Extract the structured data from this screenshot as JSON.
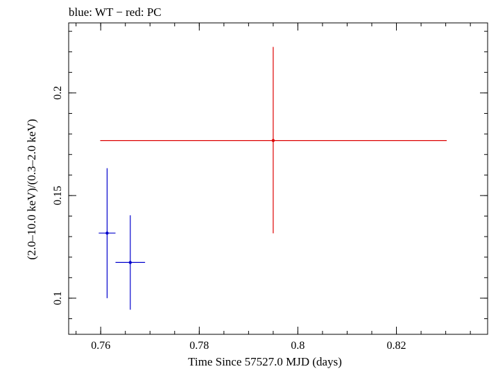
{
  "chart_data": {
    "type": "scatter",
    "title": "blue: WT − red: PC",
    "xlabel": "Time Since 57527.0 MJD (days)",
    "ylabel": "(2.0–10.0 keV)/(0.3–2.0 keV)",
    "xlim": [
      0.7535,
      0.8385
    ],
    "ylim": [
      0.0824,
      0.2341
    ],
    "x_ticks": [
      {
        "value": 0.76,
        "label": "0.76"
      },
      {
        "value": 0.78,
        "label": "0.78"
      },
      {
        "value": 0.8,
        "label": "0.8"
      },
      {
        "value": 0.82,
        "label": "0.82"
      }
    ],
    "y_ticks": [
      {
        "value": 0.1,
        "label": "0.1"
      },
      {
        "value": 0.15,
        "label": "0.15"
      },
      {
        "value": 0.2,
        "label": "0.2"
      }
    ],
    "x_minor_step": 0.005,
    "y_minor_step": 0.01,
    "series": [
      {
        "name": "WT",
        "color": "#0000cc",
        "points": [
          {
            "x": 0.7613,
            "xerr_lo": 0.0017,
            "xerr_hi": 0.0017,
            "y": 0.1317,
            "yerr_lo": 0.0317,
            "yerr_hi": 0.0316
          },
          {
            "x": 0.766,
            "xerr_lo": 0.003,
            "xerr_hi": 0.003,
            "y": 0.1174,
            "yerr_lo": 0.023,
            "yerr_hi": 0.023
          }
        ]
      },
      {
        "name": "PC",
        "color": "#dd0000",
        "points": [
          {
            "x": 0.795,
            "xerr_lo": 0.0351,
            "xerr_hi": 0.0352,
            "y": 0.1768,
            "yerr_lo": 0.0452,
            "yerr_hi": 0.0456
          }
        ]
      }
    ]
  }
}
